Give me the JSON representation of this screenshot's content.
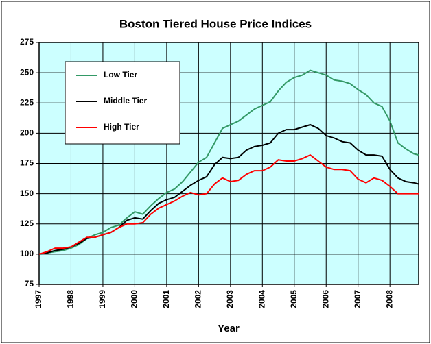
{
  "chart_data": {
    "type": "line",
    "title": "Boston Tiered House Price Indices",
    "xlabel": "Year",
    "x": [
      1997,
      1997.25,
      1997.5,
      1997.75,
      1998,
      1998.25,
      1998.5,
      1998.75,
      1999,
      1999.25,
      1999.5,
      1999.75,
      2000,
      2000.25,
      2000.5,
      2000.75,
      2001,
      2001.25,
      2001.5,
      2001.75,
      2002,
      2002.25,
      2002.5,
      2002.75,
      2003,
      2003.25,
      2003.5,
      2003.75,
      2004,
      2004.25,
      2004.5,
      2004.75,
      2005,
      2005.25,
      2005.5,
      2005.75,
      2006,
      2006.25,
      2006.5,
      2006.75,
      2007,
      2007.25,
      2007.5,
      2007.75,
      2008,
      2008.25,
      2008.5,
      2008.75,
      2008.9
    ],
    "series": [
      {
        "name": "Low Tier",
        "color": "#339966",
        "values": [
          100,
          101,
          102,
          103,
          105,
          108,
          113,
          116,
          118,
          122,
          124,
          130,
          135,
          133,
          140,
          146,
          151,
          154,
          160,
          168,
          176,
          180,
          192,
          204,
          207,
          210,
          215,
          220,
          223,
          226,
          235,
          242,
          246,
          248,
          252,
          250,
          248,
          244,
          243,
          241,
          236,
          232,
          225,
          222,
          210,
          192,
          187,
          183,
          182
        ]
      },
      {
        "name": "Middle Tier",
        "color": "#000000",
        "values": [
          100,
          101,
          103,
          104,
          106,
          109,
          113,
          114,
          116,
          118,
          122,
          128,
          130,
          129,
          136,
          142,
          145,
          147,
          152,
          157,
          161,
          164,
          174,
          180,
          179,
          180,
          186,
          189,
          190,
          192,
          200,
          203,
          203,
          205,
          207,
          204,
          198,
          196,
          193,
          192,
          186,
          182,
          182,
          181,
          170,
          163,
          160,
          159,
          158
        ]
      },
      {
        "name": "High Tier",
        "color": "#ff0000",
        "values": [
          100,
          102,
          105,
          105,
          106,
          110,
          114,
          114,
          116,
          118,
          122,
          125,
          125,
          126,
          133,
          138,
          141,
          144,
          148,
          151,
          149,
          150,
          158,
          163,
          160,
          161,
          166,
          169,
          169,
          172,
          178,
          177,
          177,
          179,
          182,
          177,
          172,
          170,
          170,
          169,
          162,
          159,
          163,
          161,
          156,
          150,
          150,
          150,
          150
        ]
      }
    ],
    "xlim": [
      1997,
      2008.9
    ],
    "xticks": [
      1997,
      1998,
      1999,
      2000,
      2001,
      2002,
      2003,
      2004,
      2005,
      2006,
      2007,
      2008
    ],
    "ylim": [
      75,
      275
    ],
    "yticks": [
      75,
      100,
      125,
      150,
      175,
      200,
      225,
      250,
      275
    ],
    "grid": true,
    "legend": "upper left",
    "background": "#ccffff"
  }
}
